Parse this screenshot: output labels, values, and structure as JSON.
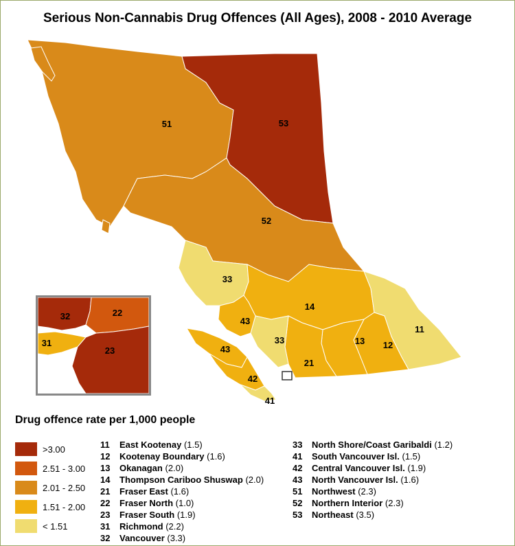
{
  "title": "Serious Non-Cannabis Drug Offences (All Ages), 2008 - 2010 Average",
  "colors": {
    "gt300": "#a52a0a",
    "r251_300": "#d2580e",
    "r201_250": "#d98a1a",
    "r151_200": "#f0b010",
    "lt151": "#f0dc70",
    "border": "#ffffff",
    "inset_border": "#888888"
  },
  "legend": {
    "title": "Drug offence rate per 1,000 people",
    "items": [
      {
        "label": ">3.00",
        "color": "#a52a0a"
      },
      {
        "label": "2.51 - 3.00",
        "color": "#d2580e"
      },
      {
        "label": "2.01 - 2.50",
        "color": "#d98a1a"
      },
      {
        "label": "1.51 - 2.00",
        "color": "#f0b010"
      },
      {
        "label": "< 1.51",
        "color": "#f0dc70"
      }
    ]
  },
  "health_areas_col1": [
    {
      "code": "11",
      "name": "East Kootenay",
      "value": "(1.5)"
    },
    {
      "code": "12",
      "name": "Kootenay Boundary",
      "value": "(1.6)"
    },
    {
      "code": "13",
      "name": "Okanagan",
      "value": "(2.0)"
    },
    {
      "code": "14",
      "name": "Thompson Cariboo Shuswap",
      "value": "(2.0)"
    },
    {
      "code": "21",
      "name": "Fraser East",
      "value": "(1.6)"
    },
    {
      "code": "22",
      "name": "Fraser North",
      "value": "(1.0)"
    },
    {
      "code": "23",
      "name": "Fraser South",
      "value": "(1.9)"
    },
    {
      "code": "31",
      "name": "Richmond",
      "value": "(2.2)"
    },
    {
      "code": "32",
      "name": "Vancouver",
      "value": "(3.3)"
    }
  ],
  "health_areas_col2": [
    {
      "code": "33",
      "name": "North Shore/Coast Garibaldi",
      "value": " (1.2)"
    },
    {
      "code": "41",
      "name": "South Vancouver Isl.",
      "value": "(1.5)"
    },
    {
      "code": "42",
      "name": "Central Vancouver Isl.",
      "value": "(1.9)"
    },
    {
      "code": "43",
      "name": "North Vancouver Isl.",
      "value": "(1.6)"
    },
    {
      "code": "51",
      "name": "Northwest",
      "value": "(2.3)"
    },
    {
      "code": "52",
      "name": "Northern Interior",
      "value": " (2.3)"
    },
    {
      "code": "53",
      "name": "Northeast",
      "value": "(3.5)"
    }
  ],
  "map_labels": {
    "r53": "53",
    "r51": "51",
    "r52": "52",
    "r33a": "33",
    "r14": "14",
    "r43a": "43",
    "r43b": "43",
    "r33b": "33",
    "r13": "13",
    "r12": "12",
    "r11": "11",
    "r21": "21",
    "r42": "42",
    "r41": "41"
  },
  "inset_labels": {
    "i32": "32",
    "i22": "22",
    "i31": "31",
    "i23": "23"
  }
}
